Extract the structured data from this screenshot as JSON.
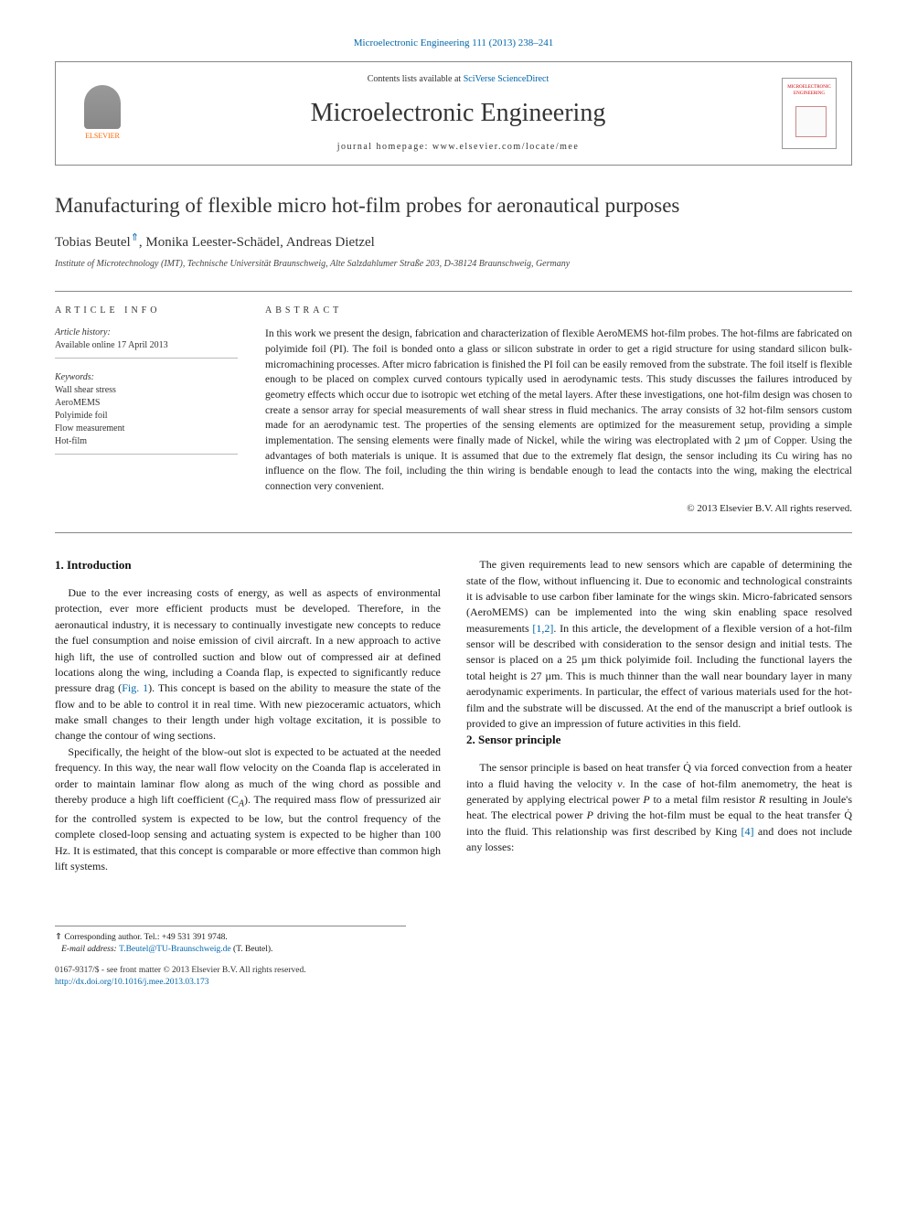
{
  "citation": "Microelectronic Engineering 111 (2013) 238–241",
  "header": {
    "contents_prefix": "Contents lists available at ",
    "contents_link": "SciVerse ScienceDirect",
    "journal": "Microelectronic Engineering",
    "homepage_prefix": "journal homepage: ",
    "homepage": "www.elsevier.com/locate/mee",
    "publisher": "ELSEVIER",
    "cover_label": "MICROELECTRONIC ENGINEERING"
  },
  "title": "Manufacturing of flexible micro hot-film probes for aeronautical purposes",
  "authors_html": "Tobias Beutel",
  "authors_rest": ", Monika Leester-Schädel, Andreas Dietzel",
  "corr_marker": "⇑",
  "affiliation": "Institute of Microtechnology (IMT), Technische Universität Braunschweig, Alte Salzdahlumer Straße 203, D-38124 Braunschweig, Germany",
  "article_info": {
    "heading": "article info",
    "history_label": "Article history:",
    "history_value": "Available online 17 April 2013",
    "keywords_label": "Keywords:",
    "keywords": [
      "Wall shear stress",
      "AeroMEMS",
      "Polyimide foil",
      "Flow measurement",
      "Hot-film"
    ]
  },
  "abstract": {
    "heading": "abstract",
    "text": "In this work we present the design, fabrication and characterization of flexible AeroMEMS hot-film probes. The hot-films are fabricated on polyimide foil (PI). The foil is bonded onto a glass or silicon substrate in order to get a rigid structure for using standard silicon bulk-micromachining processes. After micro fabrication is finished the PI foil can be easily removed from the substrate. The foil itself is flexible enough to be placed on complex curved contours typically used in aerodynamic tests. This study discusses the failures introduced by geometry effects which occur due to isotropic wet etching of the metal layers. After these investigations, one hot-film design was chosen to create a sensor array for special measurements of wall shear stress in fluid mechanics. The array consists of 32 hot-film sensors custom made for an aerodynamic test. The properties of the sensing elements are optimized for the measurement setup, providing a simple implementation. The sensing elements were finally made of Nickel, while the wiring was electroplated with 2 µm of Copper. Using the advantages of both materials is unique. It is assumed that due to the extremely flat design, the sensor including its Cu wiring has no influence on the flow. The foil, including the thin wiring is bendable enough to lead the contacts into the wing, making the electrical connection very convenient.",
    "copyright": "© 2013 Elsevier B.V. All rights reserved."
  },
  "sections": {
    "intro_heading": "1. Introduction",
    "intro_p1": "Due to the ever increasing costs of energy, as well as aspects of environmental protection, ever more efficient products must be developed. Therefore, in the aeronautical industry, it is necessary to continually investigate new concepts to reduce the fuel consumption and noise emission of civil aircraft. In a new approach to active high lift, the use of controlled suction and blow out of compressed air at defined locations along the wing, including a Coanda flap, is expected to significantly reduce pressure drag (",
    "intro_fig1": "Fig. 1",
    "intro_p1b": "). This concept is based on the ability to measure the state of the flow and to be able to control it in real time. With new piezoceramic actuators, which make small changes to their length under high voltage excitation, it is possible to change the contour of wing sections.",
    "intro_p2": "Specifically, the height of the blow-out slot is expected to be actuated at the needed frequency. In this way, the near wall flow velocity on the Coanda flap is accelerated in order to maintain laminar flow along as much of the wing chord as possible and thereby produce a high lift coefficient (C",
    "intro_p2_sub": "A",
    "intro_p2b": "). The required mass flow of pressurized air for the controlled system is expected to be low, but the control frequency of the complete closed-loop sensing and actuating system is expected to be higher than 100 Hz. It is estimated, that this concept is comparable or more effective than common high lift systems.",
    "intro_p3a": "The given requirements lead to new sensors which are capable of determining the state of the flow, without influencing it. Due to economic and technological constraints it is advisable to use carbon fiber laminate for the wings skin. Micro-fabricated sensors (AeroMEMS) can be implemented into the wing skin enabling space resolved measurements ",
    "intro_ref12": "[1,2]",
    "intro_p3b": ". In this article, the development of a flexible version of a hot-film sensor will be described with consideration to the sensor design and initial tests. The sensor is placed on a 25 µm thick polyimide foil. Including the functional layers the total height is 27 µm. This is much thinner than the wall near boundary layer in many aerodynamic experiments. In particular, the effect of various materials used for the hot-film and the substrate will be discussed. At the end of the manuscript a brief outlook is provided to give an impression of future activities in this field.",
    "sensor_heading": "2. Sensor principle",
    "sensor_p1a": "The sensor principle is based on heat transfer Q̇ via forced convection from a heater into a fluid having the velocity ",
    "sensor_v": "v",
    "sensor_p1b": ". In the case of hot-film anemometry, the heat is generated by applying electrical power ",
    "sensor_P": "P",
    "sensor_p1c": " to a metal film resistor ",
    "sensor_R": "R",
    "sensor_p1d": " resulting in Joule's heat. The electrical power ",
    "sensor_p1e": " driving the hot-film must be equal to the heat transfer Q̇ into the fluid. This relationship was first described by King ",
    "sensor_ref4": "[4]",
    "sensor_p1f": " and does not include any losses:"
  },
  "corr": {
    "marker": "⇑",
    "line1": " Corresponding author. Tel.: +49 531 391 9748.",
    "email_label": "E-mail address: ",
    "email": "T.Beutel@TU-Braunschweig.de",
    "email_suffix": " (T. Beutel)."
  },
  "footer": {
    "line1": "0167-9317/$ - see front matter © 2013 Elsevier B.V. All rights reserved.",
    "doi": "http://dx.doi.org/10.1016/j.mee.2013.03.173"
  },
  "colors": {
    "link": "#0066aa",
    "text": "#1a1a1a",
    "rule": "#888888",
    "elsevier_orange": "#ff6600"
  }
}
